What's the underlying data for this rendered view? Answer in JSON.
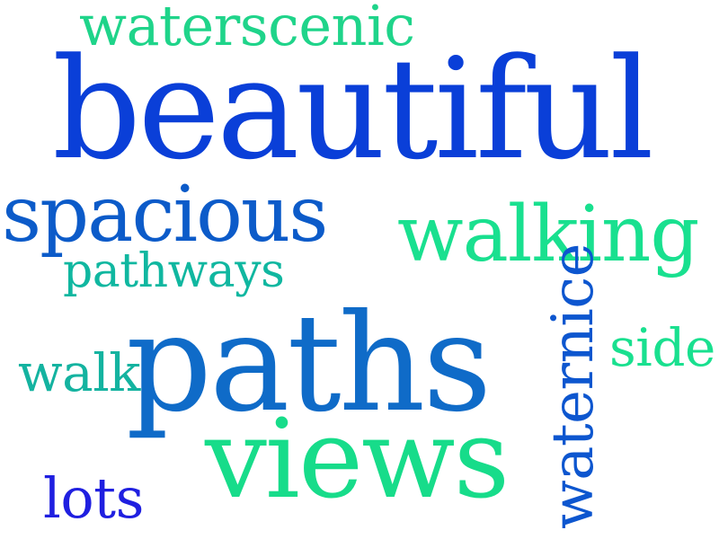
{
  "words": [
    {
      "id": "waterscenic",
      "text": "waterscenic",
      "color": "#1fd48a"
    },
    {
      "id": "beautiful",
      "text": "beautiful",
      "color": "#0a3fd8"
    },
    {
      "id": "spacious",
      "text": "spacious",
      "color": "#0c5bc9"
    },
    {
      "id": "walking",
      "text": "walking",
      "color": "#19e08f"
    },
    {
      "id": "pathways",
      "text": "pathways",
      "color": "#10b7a0"
    },
    {
      "id": "paths",
      "text": "paths",
      "color": "#0f6bc8"
    },
    {
      "id": "walk",
      "text": "walk",
      "color": "#14b3a0"
    },
    {
      "id": "side",
      "text": "side",
      "color": "#19e08f"
    },
    {
      "id": "views",
      "text": "views",
      "color": "#17dc8a"
    },
    {
      "id": "lots",
      "text": "lots",
      "color": "#1f1fe0"
    },
    {
      "id": "waternice",
      "text": "waternice",
      "color": "#0d56cf",
      "orientation": "vertical"
    }
  ]
}
